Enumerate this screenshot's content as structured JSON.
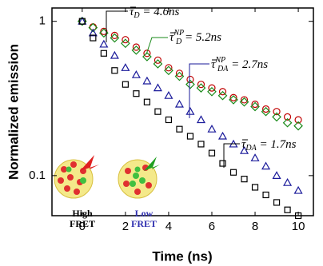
{
  "chart_data": {
    "type": "scatter",
    "xlabel": "Time (ns)",
    "ylabel": "Normalized emission",
    "xlim": [
      -1.4,
      10.7
    ],
    "xticks": [
      0,
      2,
      4,
      6,
      8,
      10
    ],
    "ylim": [
      0.055,
      1.22
    ],
    "yticks": [
      0.1,
      1
    ],
    "log_y": true,
    "x": [
      0,
      0.5,
      1,
      1.5,
      2,
      2.5,
      3,
      3.5,
      4,
      4.5,
      5,
      5.5,
      6,
      6.5,
      7,
      7.5,
      8,
      8.5,
      9,
      9.5,
      10
    ],
    "series": [
      {
        "color": "#c00000",
        "marker": "circle",
        "values": [
          1,
          0.92,
          0.86,
          0.81,
          0.76,
          0.68,
          0.62,
          0.56,
          0.5,
          0.46,
          0.42,
          0.39,
          0.37,
          0.35,
          0.32,
          0.31,
          0.29,
          0.27,
          0.26,
          0.24,
          0.23
        ]
      },
      {
        "color": "#1a8a1a",
        "marker": "diamond",
        "values": [
          1,
          0.91,
          0.84,
          0.78,
          0.72,
          0.65,
          0.59,
          0.53,
          0.48,
          0.44,
          0.39,
          0.37,
          0.35,
          0.33,
          0.31,
          0.3,
          0.28,
          0.26,
          0.24,
          0.22,
          0.21
        ]
      },
      {
        "color": "#1a1a9a",
        "marker": "triangle",
        "values": [
          1,
          0.84,
          0.71,
          0.6,
          0.5,
          0.45,
          0.41,
          0.37,
          0.33,
          0.29,
          0.26,
          0.23,
          0.2,
          0.18,
          0.16,
          0.145,
          0.13,
          0.115,
          0.1,
          0.09,
          0.08
        ]
      },
      {
        "color": "#000000",
        "marker": "square",
        "values": [
          1,
          0.78,
          0.62,
          0.48,
          0.39,
          0.34,
          0.3,
          0.26,
          0.23,
          0.2,
          0.18,
          0.16,
          0.14,
          0.12,
          0.105,
          0.095,
          0.084,
          0.075,
          0.067,
          0.06,
          0.055
        ]
      }
    ],
    "annotations": [
      {
        "symbol": "τ",
        "sub": "D",
        "text": " = 4.6ns"
      },
      {
        "symbol": "τ",
        "sub": "D",
        "sup": "NP",
        "text": " = 5.2ns"
      },
      {
        "symbol": "τ",
        "sub": "DA",
        "sup": "NP",
        "text": " = 2.7ns"
      },
      {
        "symbol": "τ",
        "sub": "DA",
        "text": " = 1.7ns"
      }
    ],
    "insets": [
      {
        "line1": "High",
        "line2": "FRET",
        "color": "#000000"
      },
      {
        "line1": "Low",
        "line2": "FRET",
        "color": "#3030b0"
      }
    ]
  }
}
